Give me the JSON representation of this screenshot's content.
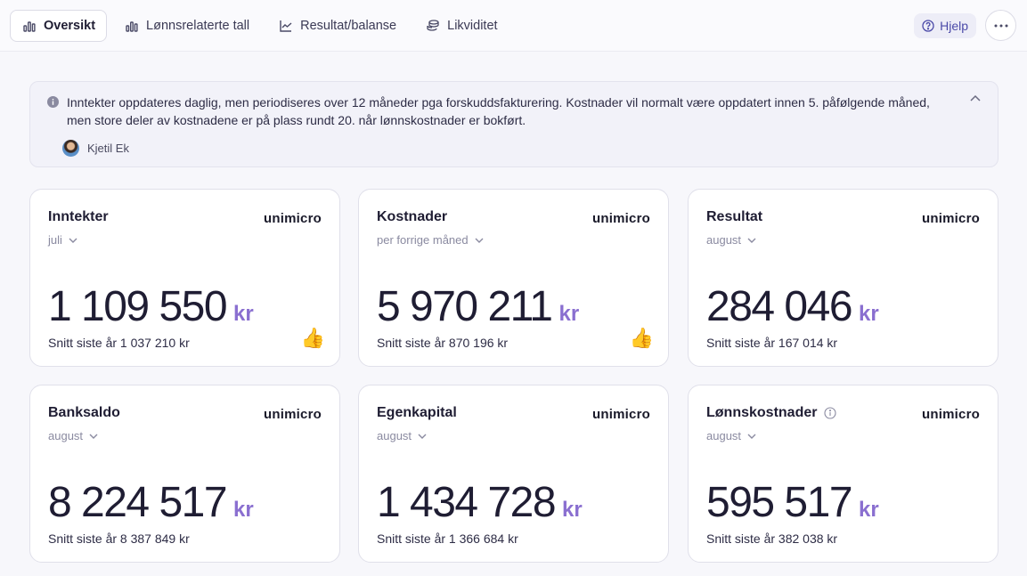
{
  "tabs": [
    {
      "label": "Oversikt",
      "icon": "bar-chart-icon",
      "active": true
    },
    {
      "label": "Lønnsrelaterte tall",
      "icon": "bar-chart-icon"
    },
    {
      "label": "Resultat/balanse",
      "icon": "line-chart-icon"
    },
    {
      "label": "Likviditet",
      "icon": "coins-icon"
    }
  ],
  "help_label": "Hjelp",
  "info": {
    "text": "Inntekter oppdateres daglig, men periodiseres over 12 måneder pga forskuddsfakturering. Kostnader vil normalt være oppdatert innen 5. påfølgende måned, men store deler av kostnadene er på plass rundt 20. når lønnskostnader er bokført.",
    "author": "Kjetil Ek"
  },
  "logo_text": "unimicro",
  "unit": "kr",
  "cards": [
    {
      "title": "Inntekter",
      "period": "juli",
      "value": "1 109 550",
      "avg": "Snitt siste år 1 037 210 kr",
      "thumb": "👍"
    },
    {
      "title": "Kostnader",
      "period": "per forrige måned",
      "value": "5 970 211",
      "avg": "Snitt siste år 870 196 kr",
      "thumb": "👍"
    },
    {
      "title": "Resultat",
      "period": "august",
      "value": "284 046",
      "avg": "Snitt siste år 167 014 kr"
    },
    {
      "title": "Banksaldo",
      "period": "august",
      "value": "8 224 517",
      "avg": "Snitt siste år 8 387 849 kr"
    },
    {
      "title": "Egenkapital",
      "period": "august",
      "value": "1 434 728",
      "avg": "Snitt siste år 1 366 684 kr"
    },
    {
      "title": "Lønnskostnader",
      "period": "august",
      "value": "595 517",
      "avg": "Snitt siste år 382 038 kr"
    }
  ]
}
